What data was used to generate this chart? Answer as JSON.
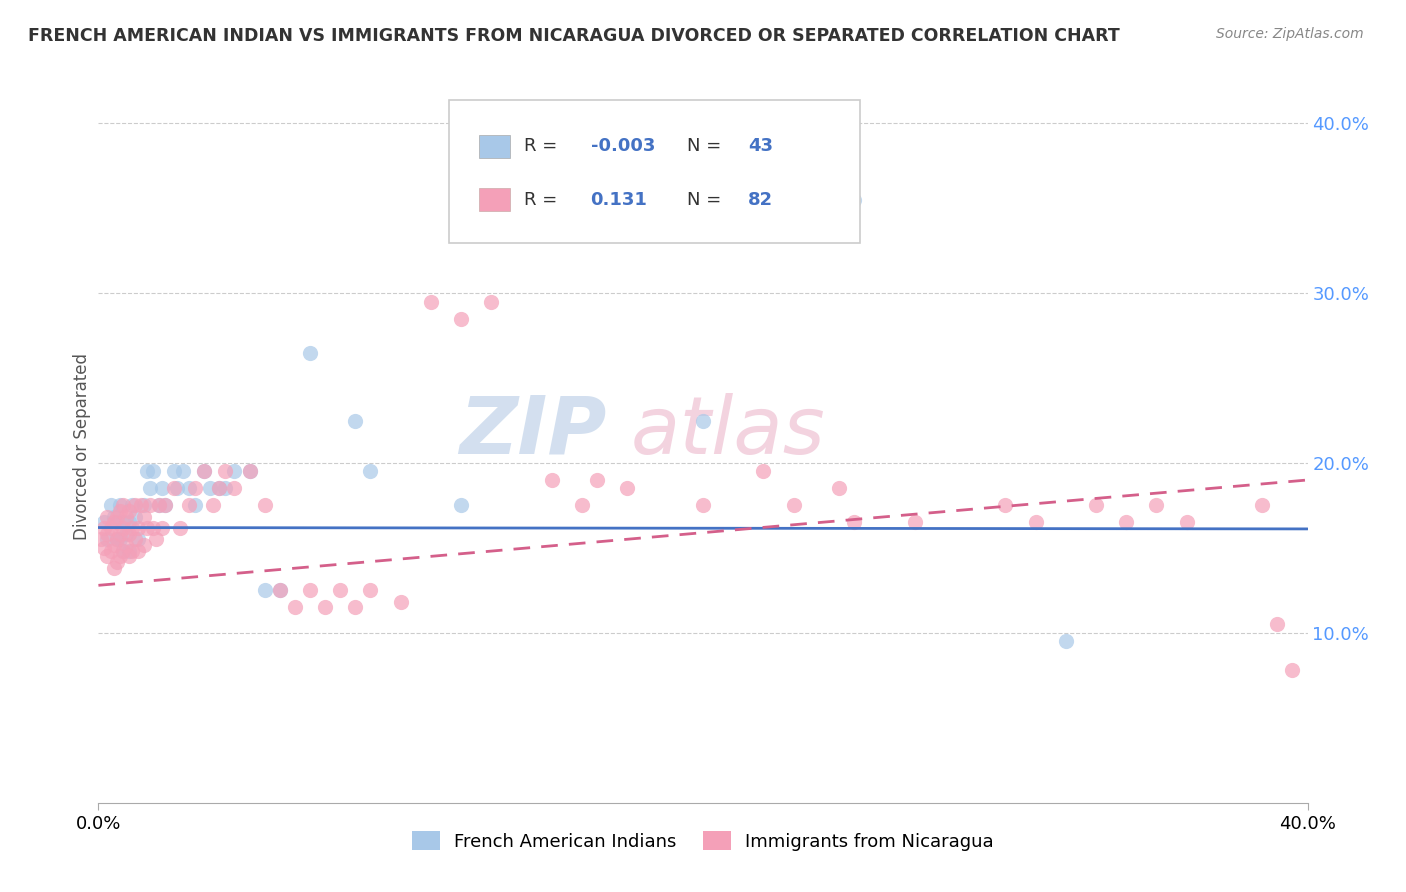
{
  "title": "FRENCH AMERICAN INDIAN VS IMMIGRANTS FROM NICARAGUA DIVORCED OR SEPARATED CORRELATION CHART",
  "source_text": "Source: ZipAtlas.com",
  "ylabel": "Divorced or Separated",
  "legend_label1": "French American Indians",
  "legend_label2": "Immigrants from Nicaragua",
  "r1": "-0.003",
  "n1": "43",
  "r2": "0.131",
  "n2": "82",
  "xmin": 0.0,
  "xmax": 0.4,
  "ymin": 0.0,
  "ymax": 0.42,
  "yticks": [
    0.1,
    0.2,
    0.3,
    0.4
  ],
  "ytick_labels": [
    "10.0%",
    "20.0%",
    "30.0%",
    "40.0%"
  ],
  "color_blue": "#a8c8e8",
  "color_pink": "#f4a0b8",
  "color_blue_line": "#4472c4",
  "color_pink_line": "#d45f8a",
  "watermark_zip": "ZIP",
  "watermark_atlas": "atlas",
  "blue_scatter_x": [
    0.002,
    0.003,
    0.004,
    0.005,
    0.006,
    0.006,
    0.007,
    0.007,
    0.008,
    0.008,
    0.009,
    0.01,
    0.01,
    0.011,
    0.012,
    0.013,
    0.015,
    0.016,
    0.017,
    0.018,
    0.02,
    0.021,
    0.022,
    0.025,
    0.026,
    0.028,
    0.03,
    0.032,
    0.035,
    0.037,
    0.04,
    0.042,
    0.045,
    0.05,
    0.055,
    0.06,
    0.07,
    0.085,
    0.09,
    0.12,
    0.2,
    0.25,
    0.32
  ],
  "blue_scatter_y": [
    0.165,
    0.155,
    0.175,
    0.168,
    0.155,
    0.165,
    0.175,
    0.155,
    0.148,
    0.165,
    0.158,
    0.148,
    0.165,
    0.175,
    0.168,
    0.155,
    0.175,
    0.195,
    0.185,
    0.195,
    0.175,
    0.185,
    0.175,
    0.195,
    0.185,
    0.195,
    0.185,
    0.175,
    0.195,
    0.185,
    0.185,
    0.185,
    0.195,
    0.195,
    0.125,
    0.125,
    0.265,
    0.225,
    0.195,
    0.175,
    0.225,
    0.355,
    0.095
  ],
  "pink_scatter_x": [
    0.001,
    0.002,
    0.002,
    0.003,
    0.003,
    0.003,
    0.004,
    0.004,
    0.005,
    0.005,
    0.005,
    0.006,
    0.006,
    0.006,
    0.007,
    0.007,
    0.007,
    0.008,
    0.008,
    0.008,
    0.009,
    0.009,
    0.01,
    0.01,
    0.01,
    0.011,
    0.011,
    0.012,
    0.012,
    0.013,
    0.013,
    0.014,
    0.015,
    0.015,
    0.016,
    0.017,
    0.018,
    0.019,
    0.02,
    0.021,
    0.022,
    0.025,
    0.027,
    0.03,
    0.032,
    0.035,
    0.038,
    0.04,
    0.042,
    0.045,
    0.05,
    0.055,
    0.06,
    0.065,
    0.07,
    0.075,
    0.08,
    0.085,
    0.09,
    0.1,
    0.11,
    0.12,
    0.13,
    0.15,
    0.16,
    0.165,
    0.175,
    0.2,
    0.22,
    0.23,
    0.245,
    0.25,
    0.27,
    0.3,
    0.31,
    0.33,
    0.34,
    0.35,
    0.36,
    0.385,
    0.39,
    0.395
  ],
  "pink_scatter_y": [
    0.155,
    0.15,
    0.162,
    0.145,
    0.158,
    0.168,
    0.148,
    0.162,
    0.138,
    0.152,
    0.165,
    0.142,
    0.155,
    0.168,
    0.145,
    0.158,
    0.172,
    0.148,
    0.162,
    0.175,
    0.152,
    0.168,
    0.145,
    0.158,
    0.172,
    0.148,
    0.162,
    0.155,
    0.175,
    0.148,
    0.162,
    0.175,
    0.152,
    0.168,
    0.162,
    0.175,
    0.162,
    0.155,
    0.175,
    0.162,
    0.175,
    0.185,
    0.162,
    0.175,
    0.185,
    0.195,
    0.175,
    0.185,
    0.195,
    0.185,
    0.195,
    0.175,
    0.125,
    0.115,
    0.125,
    0.115,
    0.125,
    0.115,
    0.125,
    0.118,
    0.295,
    0.285,
    0.295,
    0.19,
    0.175,
    0.19,
    0.185,
    0.175,
    0.195,
    0.175,
    0.185,
    0.165,
    0.165,
    0.175,
    0.165,
    0.175,
    0.165,
    0.175,
    0.165,
    0.175,
    0.105,
    0.078
  ]
}
